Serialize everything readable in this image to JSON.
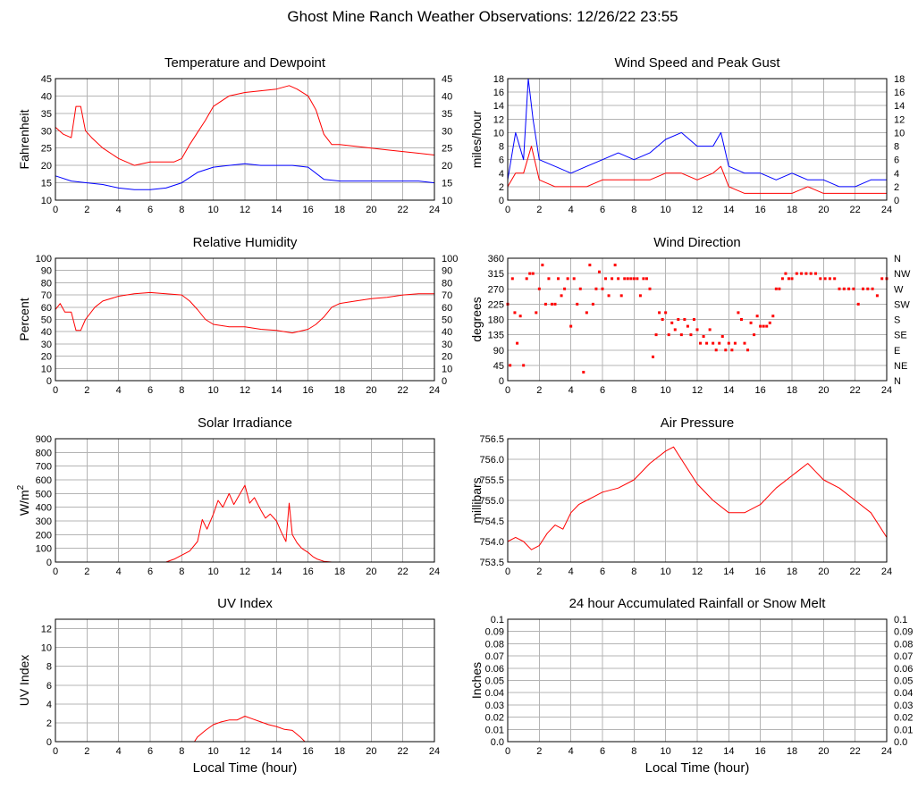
{
  "page_title": "Ghost Mine Ranch Weather Observations: 12/26/22 23:55",
  "xlabel": "Local Time (hour)",
  "chart_data": [
    {
      "id": "temperature-dewpoint",
      "type": "line",
      "title": "Temperature and Dewpoint",
      "ylabel": "Fahrenheit",
      "xlim": [
        0,
        24
      ],
      "ylim": [
        10,
        45
      ],
      "yticks": [
        10,
        15,
        20,
        25,
        30,
        35,
        40,
        45
      ],
      "ytick_labels": [
        "10",
        "15",
        "20",
        "25",
        "30",
        "35",
        "40",
        "45"
      ],
      "right_axis": true,
      "show_xlabel": false,
      "series": [
        {
          "name": "Temperature",
          "color": "#ff0000",
          "x": [
            0,
            0.5,
            1.0,
            1.3,
            1.6,
            1.9,
            2.3,
            3.0,
            4.0,
            5.0,
            6.0,
            7.0,
            7.5,
            8.0,
            8.5,
            9.0,
            9.5,
            10.0,
            11.0,
            12.0,
            13.0,
            14.0,
            14.8,
            15.3,
            16.0,
            16.5,
            17.0,
            17.5,
            18.0,
            19.0,
            20.0,
            21.0,
            22.0,
            23.0,
            24.0
          ],
          "y": [
            31,
            29,
            28,
            37,
            37,
            30,
            28,
            25,
            22,
            20,
            21,
            21,
            21,
            22,
            26,
            29.5,
            33,
            37,
            40,
            41,
            41.5,
            42,
            43,
            42,
            40,
            36,
            29,
            26,
            26,
            25.5,
            25,
            24.5,
            24,
            23.5,
            23
          ]
        },
        {
          "name": "Dewpoint",
          "color": "#0000ff",
          "x": [
            0,
            1,
            2,
            3,
            4,
            5,
            6,
            7,
            8,
            9,
            10,
            11,
            12,
            13,
            14,
            15,
            16,
            17,
            18,
            19,
            20,
            21,
            22,
            23,
            24
          ],
          "y": [
            17,
            15.5,
            15,
            14.5,
            13.5,
            13,
            13,
            13.5,
            15,
            18,
            19.5,
            20,
            20.5,
            20,
            20,
            20,
            19.5,
            16,
            15.5,
            15.5,
            15.5,
            15.5,
            15.5,
            15.5,
            15
          ]
        }
      ]
    },
    {
      "id": "wind-speed-gust",
      "type": "line",
      "title": "Wind Speed and Peak Gust",
      "ylabel": "miles/hour",
      "xlim": [
        0,
        24
      ],
      "ylim": [
        0,
        18
      ],
      "yticks": [
        0,
        2,
        4,
        6,
        8,
        10,
        12,
        14,
        16,
        18
      ],
      "ytick_labels": [
        "0",
        "2",
        "4",
        "6",
        "8",
        "10",
        "12",
        "14",
        "16",
        "18"
      ],
      "right_axis": true,
      "show_xlabel": false,
      "series": [
        {
          "name": "Peak Gust",
          "color": "#0000ff",
          "x": [
            0,
            0.5,
            1.0,
            1.3,
            1.6,
            2.0,
            3,
            4,
            5,
            6,
            7,
            8,
            9,
            10,
            11,
            12,
            13,
            13.5,
            14,
            15,
            16,
            17,
            18,
            19,
            20,
            21,
            22,
            23,
            24
          ],
          "y": [
            3,
            10,
            6,
            18,
            12,
            6,
            5,
            4,
            5,
            6,
            7,
            6,
            7,
            9,
            10,
            8,
            8,
            10,
            5,
            4,
            4,
            3,
            4,
            3,
            3,
            2,
            2,
            3,
            3
          ]
        },
        {
          "name": "Wind Speed",
          "color": "#ff0000",
          "x": [
            0,
            0.5,
            1.0,
            1.5,
            2.0,
            3,
            4,
            5,
            6,
            7,
            8,
            9,
            10,
            11,
            12,
            13,
            13.5,
            14,
            15,
            16,
            17,
            18,
            19,
            20,
            21,
            22,
            23,
            24
          ],
          "y": [
            2,
            4,
            4,
            8,
            3,
            2,
            2,
            2,
            3,
            3,
            3,
            3,
            4,
            4,
            3,
            4,
            5,
            2,
            1,
            1,
            1,
            1,
            2,
            1,
            1,
            1,
            1,
            1
          ]
        }
      ]
    },
    {
      "id": "relative-humidity",
      "type": "line",
      "title": "Relative Humidity",
      "ylabel": "Percent",
      "xlim": [
        0,
        24
      ],
      "ylim": [
        0,
        100
      ],
      "yticks": [
        0,
        10,
        20,
        30,
        40,
        50,
        60,
        70,
        80,
        90,
        100
      ],
      "ytick_labels": [
        "0",
        "10",
        "20",
        "30",
        "40",
        "50",
        "60",
        "70",
        "80",
        "90",
        "100"
      ],
      "right_axis": true,
      "show_xlabel": false,
      "series": [
        {
          "name": "Relative Humidity",
          "color": "#ff0000",
          "x": [
            0,
            0.3,
            0.6,
            1.0,
            1.3,
            1.6,
            1.9,
            2.5,
            3,
            4,
            5,
            6,
            7,
            8,
            8.5,
            9.0,
            9.5,
            10,
            11,
            12,
            13,
            14,
            15,
            16,
            16.5,
            17,
            17.5,
            18,
            19,
            20,
            21,
            22,
            23,
            24
          ],
          "y": [
            58,
            63,
            56,
            56,
            41,
            41,
            50,
            60,
            65,
            69,
            71,
            72,
            71,
            70,
            65,
            58,
            50,
            46,
            44,
            44,
            42,
            41,
            39,
            42,
            46,
            52,
            60,
            63,
            65,
            67,
            68,
            70,
            71,
            71
          ]
        }
      ]
    },
    {
      "id": "wind-direction",
      "type": "scatter",
      "title": "Wind Direction",
      "ylabel": "degrees",
      "xlim": [
        0,
        24
      ],
      "ylim": [
        0,
        360
      ],
      "yticks": [
        0,
        45,
        90,
        135,
        180,
        225,
        270,
        315,
        360
      ],
      "ytick_labels": [
        "0",
        "45",
        "90",
        "135",
        "180",
        "225",
        "270",
        "315",
        "360"
      ],
      "right_ticks": [
        "N",
        "NE",
        "E",
        "SE",
        "S",
        "SW",
        "W",
        "NW",
        "N"
      ],
      "right_axis": true,
      "show_xlabel": false,
      "series": [
        {
          "name": "Wind Direction",
          "color": "#ff0000",
          "x": [
            0,
            0.15,
            0.3,
            0.45,
            0.6,
            0.8,
            1.0,
            1.2,
            1.4,
            1.6,
            1.8,
            2.0,
            2.2,
            2.4,
            2.6,
            2.8,
            3.0,
            3.2,
            3.4,
            3.6,
            3.8,
            4.0,
            4.2,
            4.4,
            4.6,
            4.8,
            5.0,
            5.2,
            5.4,
            5.6,
            5.8,
            6.0,
            6.2,
            6.4,
            6.6,
            6.8,
            7.0,
            7.2,
            7.4,
            7.6,
            7.8,
            8.0,
            8.2,
            8.4,
            8.6,
            8.8,
            9.0,
            9.2,
            9.4,
            9.6,
            9.8,
            10.0,
            10.2,
            10.4,
            10.6,
            10.8,
            11.0,
            11.2,
            11.4,
            11.6,
            11.8,
            12.0,
            12.2,
            12.4,
            12.6,
            12.8,
            13.0,
            13.2,
            13.4,
            13.6,
            13.8,
            14.0,
            14.2,
            14.4,
            14.6,
            14.8,
            15.0,
            15.2,
            15.4,
            15.6,
            15.8,
            16.0,
            16.2,
            16.4,
            16.6,
            16.8,
            17.0,
            17.2,
            17.4,
            17.6,
            17.8,
            18.0,
            18.3,
            18.6,
            18.9,
            19.2,
            19.5,
            19.8,
            20.1,
            20.4,
            20.7,
            21.0,
            21.3,
            21.6,
            21.9,
            22.2,
            22.5,
            22.8,
            23.1,
            23.4,
            23.7,
            24.0
          ],
          "y": [
            225,
            45,
            300,
            200,
            110,
            190,
            45,
            300,
            315,
            315,
            200,
            270,
            340,
            225,
            300,
            225,
            225,
            300,
            250,
            270,
            300,
            160,
            300,
            225,
            270,
            25,
            200,
            340,
            225,
            270,
            320,
            270,
            300,
            250,
            300,
            340,
            300,
            250,
            300,
            300,
            300,
            300,
            300,
            250,
            300,
            300,
            270,
            70,
            135,
            200,
            180,
            200,
            135,
            170,
            150,
            180,
            135,
            180,
            160,
            135,
            180,
            150,
            110,
            130,
            110,
            150,
            110,
            90,
            110,
            130,
            90,
            110,
            90,
            110,
            200,
            180,
            110,
            90,
            170,
            135,
            190,
            160,
            160,
            160,
            170,
            190,
            270,
            270,
            300,
            315,
            300,
            300,
            315,
            315,
            315,
            315,
            315,
            300,
            300,
            300,
            300,
            270,
            270,
            270,
            270,
            225,
            270,
            270,
            270,
            250,
            300,
            300
          ]
        }
      ]
    },
    {
      "id": "solar-irradiance",
      "type": "line",
      "title": "Solar Irradiance",
      "ylabel": "W/m",
      "ylabel_sup": "2",
      "xlim": [
        0,
        24
      ],
      "ylim": [
        0,
        900
      ],
      "yticks": [
        0,
        100,
        200,
        300,
        400,
        500,
        600,
        700,
        800,
        900
      ],
      "ytick_labels": [
        "0",
        "100",
        "200",
        "300",
        "400",
        "500",
        "600",
        "700",
        "800",
        "900"
      ],
      "right_axis": false,
      "show_xlabel": false,
      "series": [
        {
          "name": "Solar Irradiance",
          "color": "#ff0000",
          "x": [
            0,
            7.0,
            7.5,
            8.0,
            8.5,
            9.0,
            9.3,
            9.6,
            10.0,
            10.3,
            10.6,
            11.0,
            11.3,
            11.6,
            12.0,
            12.3,
            12.6,
            13.0,
            13.3,
            13.6,
            14.0,
            14.3,
            14.6,
            14.8,
            15.0,
            15.3,
            15.6,
            16.0,
            16.3,
            16.6,
            17.0,
            17.5,
            24.0
          ],
          "y": [
            0,
            0,
            20,
            50,
            80,
            150,
            310,
            240,
            350,
            450,
            400,
            500,
            420,
            480,
            560,
            430,
            470,
            380,
            320,
            350,
            300,
            220,
            150,
            430,
            200,
            140,
            100,
            70,
            40,
            20,
            5,
            0,
            0
          ]
        }
      ]
    },
    {
      "id": "air-pressure",
      "type": "line",
      "title": "Air Pressure",
      "ylabel": "millibars",
      "xlim": [
        0,
        24
      ],
      "ylim": [
        753.5,
        756.5
      ],
      "yticks": [
        753.5,
        754.0,
        754.5,
        755.0,
        755.5,
        756.0,
        756.5
      ],
      "ytick_labels": [
        "753.5",
        "754.0",
        "754.5",
        "755.0",
        "755.5",
        "756.0",
        "756.5"
      ],
      "right_axis": false,
      "show_xlabel": false,
      "series": [
        {
          "name": "Air Pressure",
          "color": "#ff0000",
          "x": [
            0,
            0.5,
            1.0,
            1.5,
            2.0,
            2.5,
            3.0,
            3.5,
            4.0,
            4.5,
            5.0,
            5.5,
            6.0,
            7.0,
            8.0,
            9.0,
            10.0,
            10.5,
            11.0,
            12.0,
            13.0,
            14.0,
            15.0,
            16.0,
            17.0,
            18.0,
            19.0,
            19.5,
            20.0,
            21.0,
            22.0,
            23.0,
            24.0
          ],
          "y": [
            754.0,
            754.1,
            754.0,
            753.8,
            753.9,
            754.2,
            754.4,
            754.3,
            754.7,
            754.9,
            755.0,
            755.1,
            755.2,
            755.3,
            755.5,
            755.9,
            756.2,
            756.3,
            756.0,
            755.4,
            755.0,
            754.7,
            754.7,
            754.9,
            755.3,
            755.6,
            755.9,
            755.7,
            755.5,
            755.3,
            755.0,
            754.7,
            754.1
          ]
        }
      ]
    },
    {
      "id": "uv-index",
      "type": "line",
      "title": "UV Index",
      "ylabel": "UV Index",
      "xlim": [
        0,
        24
      ],
      "ylim": [
        0,
        13
      ],
      "yticks": [
        0,
        2,
        4,
        6,
        8,
        10,
        12
      ],
      "ytick_labels": [
        "0",
        "2",
        "4",
        "6",
        "8",
        "10",
        "12"
      ],
      "right_axis": false,
      "show_xlabel": true,
      "series": [
        {
          "name": "UV Index",
          "color": "#ff0000",
          "x": [
            0,
            8.8,
            9.0,
            9.5,
            10.0,
            10.5,
            11.0,
            11.5,
            12.0,
            12.5,
            13.0,
            13.5,
            14.0,
            14.5,
            15.0,
            15.5,
            15.8,
            24.0
          ],
          "y": [
            0,
            0,
            0.5,
            1.2,
            1.8,
            2.1,
            2.3,
            2.3,
            2.7,
            2.4,
            2.1,
            1.8,
            1.6,
            1.3,
            1.2,
            0.5,
            0,
            0
          ]
        }
      ]
    },
    {
      "id": "rainfall",
      "type": "line",
      "title": "24 hour Accumulated Rainfall or Snow Melt",
      "ylabel": "Inches",
      "xlim": [
        0,
        24
      ],
      "ylim": [
        0,
        0.1
      ],
      "yticks": [
        0,
        0.01,
        0.02,
        0.03,
        0.04,
        0.05,
        0.06,
        0.07,
        0.08,
        0.09,
        0.1
      ],
      "ytick_labels": [
        "0.0",
        "0.01",
        "0.02",
        "0.03",
        "0.04",
        "0.05",
        "0.06",
        "0.07",
        "0.08",
        "0.09",
        "0.1"
      ],
      "right_axis": true,
      "show_xlabel": true,
      "series": [
        {
          "name": "Rainfall",
          "color": "#ff0000",
          "x": [
            0,
            24
          ],
          "y": [
            0,
            0
          ]
        }
      ]
    }
  ]
}
